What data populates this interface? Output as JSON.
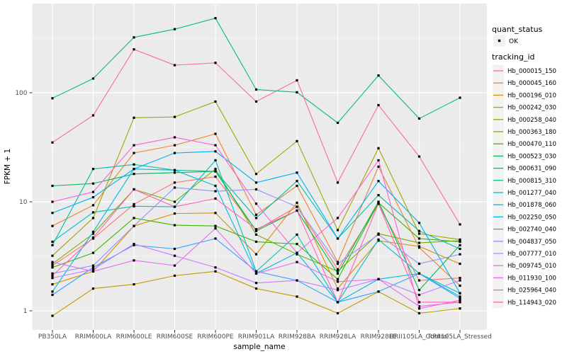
{
  "figure": {
    "background": "#FFFFFF",
    "panel_background": "#EBEBEB",
    "grid_color": "#FFFFFF",
    "tick_label_color": "#4D4D4D",
    "axis_title_color": "#000000",
    "point_color": "#000000",
    "legend_key_background": "#F2F2F2"
  },
  "legend": {
    "quant_status_title": "quant_status",
    "quant_status_items": [
      {
        "label": "OK",
        "symbol": "black-point"
      }
    ],
    "tracking_title": "tracking_id"
  },
  "chart_data": {
    "type": "line",
    "title": "",
    "xlabel": "sample_name",
    "ylabel": "FPKM + 1",
    "y_scale": "log10",
    "y_ticks": [
      1,
      10,
      100
    ],
    "y_tick_labels": [
      "1",
      "10",
      "100"
    ],
    "ylim": [
      0.67,
      700
    ],
    "grid": "on",
    "legend_position": "right",
    "point_marker": "small-black-point",
    "categories": [
      "PB350LA",
      "RRIM600LA",
      "RRIM600LE",
      "RRIM600SE",
      "RRIM600PE",
      "RRIM901LA",
      "RRIM928BA",
      "RRIM928LA",
      "RRIM928LE",
      "RRII105LA_Control",
      "RRII105LA_Stressed"
    ],
    "series": [
      {
        "name": "Hb_000015_150",
        "color": "#F8766D",
        "values": [
          2.6,
          4.6,
          9.5,
          15,
          17,
          5.5,
          9.0,
          2.4,
          9.5,
          1.9,
          2.0
        ]
      },
      {
        "name": "Hb_000045_160",
        "color": "#EA8331",
        "values": [
          6.0,
          9.3,
          28,
          33,
          42,
          7.6,
          14,
          2.8,
          21,
          3.8,
          1.7
        ]
      },
      {
        "name": "Hb_000196_010",
        "color": "#D89000",
        "values": [
          1.75,
          2.3,
          6.0,
          7.8,
          7.9,
          3.3,
          9.8,
          1.6,
          4.4,
          3.9,
          2.7
        ]
      },
      {
        "name": "Hb_000242_030",
        "color": "#C09B00",
        "values": [
          0.9,
          1.6,
          1.75,
          2.1,
          2.3,
          1.6,
          1.35,
          0.95,
          1.5,
          0.95,
          1.05
        ]
      },
      {
        "name": "Hb_000258_040",
        "color": "#A3A500",
        "values": [
          3.2,
          7.1,
          59,
          60,
          83,
          18,
          36,
          5.5,
          31,
          5.1,
          4.5
        ]
      },
      {
        "name": "Hb_000363_180",
        "color": "#7CAE00",
        "values": [
          2.7,
          5.1,
          13,
          10,
          20,
          5.0,
          3.3,
          2.3,
          5.1,
          4.2,
          4.4
        ]
      },
      {
        "name": "Hb_000470_110",
        "color": "#39B600",
        "values": [
          2.5,
          3.4,
          7.1,
          6.1,
          6.0,
          4.3,
          4.1,
          1.95,
          9.8,
          4.6,
          4.3
        ]
      },
      {
        "name": "Hb_000523_030",
        "color": "#00BB4E",
        "values": [
          14,
          14.7,
          18,
          18.5,
          19,
          5.4,
          8.3,
          2.2,
          10,
          1.55,
          4.0
        ]
      },
      {
        "name": "Hb_000631_090",
        "color": "#00BF7D",
        "values": [
          89,
          135,
          322,
          383,
          483,
          107,
          101,
          53,
          144,
          58,
          90
        ]
      },
      {
        "name": "Hb_000815_310",
        "color": "#00C1A3",
        "values": [
          4.0,
          20,
          22,
          19.5,
          19,
          7.1,
          15.5,
          4.6,
          11.5,
          5.4,
          3.7
        ]
      },
      {
        "name": "Hb_001277_040",
        "color": "#00BFC4",
        "values": [
          4.3,
          8.0,
          9.1,
          9.0,
          24,
          2.3,
          5.0,
          1.2,
          4.5,
          2.2,
          1.45
        ]
      },
      {
        "name": "Hb_001878_060",
        "color": "#00BAE0",
        "values": [
          1.5,
          5.3,
          20,
          19.5,
          14,
          2.2,
          3.4,
          1.2,
          1.95,
          2.2,
          1.35
        ]
      },
      {
        "name": "Hb_002250_050",
        "color": "#00B0F6",
        "values": [
          7.9,
          11,
          20,
          28,
          29,
          15,
          18.5,
          4.6,
          15.5,
          6.4,
          1.45
        ]
      },
      {
        "name": "Hb_002740_040",
        "color": "#35A2FF",
        "values": [
          1.4,
          2.5,
          4.0,
          3.7,
          4.6,
          2.3,
          1.9,
          1.2,
          1.5,
          2.2,
          1.3
        ]
      },
      {
        "name": "Hb_004837_050",
        "color": "#9590FF",
        "values": [
          2.2,
          2.6,
          6.0,
          13.5,
          12.5,
          13,
          9.0,
          2.7,
          5.0,
          2.7,
          3.3
        ]
      },
      {
        "name": "Hb_007777_010",
        "color": "#C77CFF",
        "values": [
          2.0,
          2.4,
          4.1,
          3.2,
          2.5,
          1.8,
          1.9,
          1.55,
          1.95,
          1.4,
          1.9
        ]
      },
      {
        "name": "Hb_009745_010",
        "color": "#E76BF3",
        "values": [
          2.8,
          2.3,
          2.9,
          2.6,
          5.7,
          2.2,
          2.8,
          1.85,
          1.95,
          1.1,
          1.2
        ]
      },
      {
        "name": "Hb_011930_100",
        "color": "#FA62DB",
        "values": [
          10,
          12.3,
          33,
          39,
          33,
          9.6,
          3.4,
          7.1,
          24,
          1.05,
          1.25
        ]
      },
      {
        "name": "Hb_025964_040",
        "color": "#FF62BC",
        "values": [
          2.1,
          4.7,
          13,
          9.0,
          10.7,
          5.6,
          8.3,
          1.2,
          9.6,
          1.2,
          1.2
        ]
      },
      {
        "name": "Hb_114943_020",
        "color": "#FF6A98",
        "values": [
          35,
          62,
          250,
          179,
          188,
          83,
          130,
          15,
          77,
          26,
          6.2
        ]
      }
    ]
  }
}
